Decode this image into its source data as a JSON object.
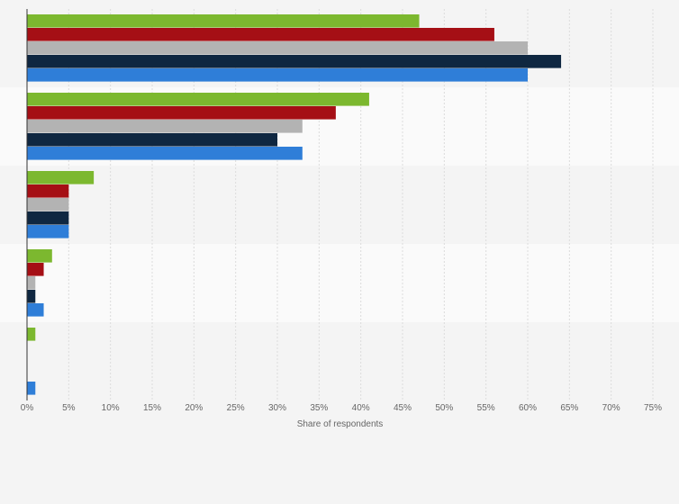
{
  "chart_data": {
    "type": "bar",
    "orientation": "horizontal",
    "title": "",
    "xlabel": "Share of respondents",
    "ylabel": "",
    "xlim": [
      0,
      75
    ],
    "x_ticks": [
      "0%",
      "5%",
      "10%",
      "15%",
      "20%",
      "25%",
      "30%",
      "35%",
      "40%",
      "45%",
      "50%",
      "55%",
      "60%",
      "65%",
      "70%",
      "75%"
    ],
    "x_tick_values": [
      0,
      5,
      10,
      15,
      20,
      25,
      30,
      35,
      40,
      45,
      50,
      55,
      60,
      65,
      70,
      75
    ],
    "categories": [
      "",
      "",
      "",
      "",
      ""
    ],
    "grid": "vertical",
    "legend": "none",
    "series": [
      {
        "color": "#7cb82f",
        "values": [
          47,
          41,
          8,
          3,
          1
        ]
      },
      {
        "color": "#a50f15",
        "values": [
          56,
          37,
          5,
          2,
          0
        ]
      },
      {
        "color": "#b3b3b3",
        "values": [
          60,
          33,
          5,
          1,
          0
        ]
      },
      {
        "color": "#0f2741",
        "values": [
          64,
          30,
          5,
          1,
          0
        ]
      },
      {
        "color": "#2f7ed8",
        "values": [
          60,
          33,
          5,
          2,
          1
        ]
      }
    ],
    "background_colors": {
      "page": "#f4f4f4",
      "band_odd": "#f4f4f4",
      "band_even": "#fafafa",
      "grid": "#dcdcdc",
      "axis": "#333333"
    }
  }
}
